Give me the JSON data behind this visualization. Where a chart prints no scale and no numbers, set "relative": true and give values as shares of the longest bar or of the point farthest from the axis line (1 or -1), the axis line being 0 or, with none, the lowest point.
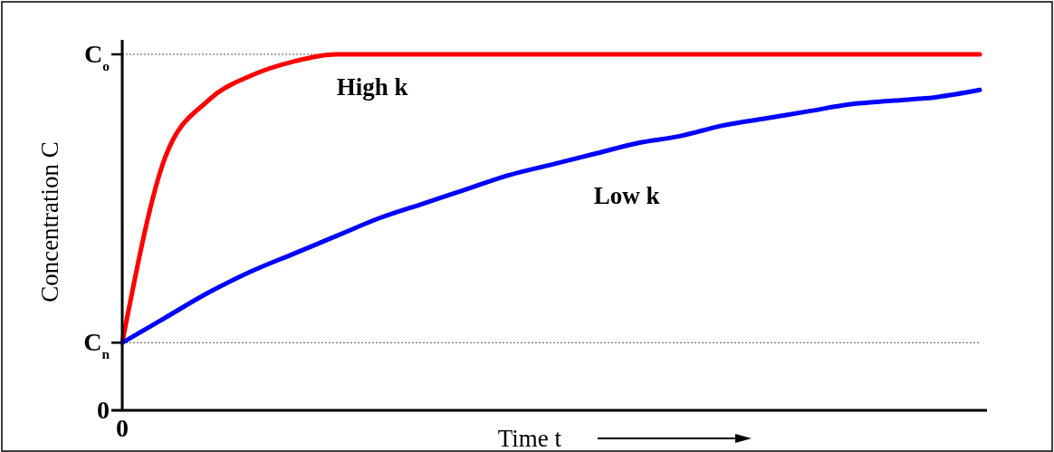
{
  "chart_data": {
    "type": "line",
    "xlabel": "Time t",
    "ylabel": "Concentration C",
    "relative": true,
    "categories": [
      null,
      null,
      null,
      null,
      null,
      null,
      null,
      null,
      null,
      null,
      null,
      null,
      null,
      null,
      null,
      null,
      null,
      null,
      null,
      null,
      null
    ],
    "annotations": [
      "0",
      "0"
    ],
    "ref_lines": [
      {
        "axis": "y",
        "value": 0.19,
        "label": "C$_{n}$",
        "line_style": "dotted",
        "color": "#555555"
      },
      {
        "axis": "y",
        "value": 1,
        "label": "C$_{o}$",
        "line_style": "dotted",
        "color": "#555555"
      }
    ],
    "series": [
      {
        "name": "High k",
        "color": "#ff0000",
        "values": [
          0.19,
          0.71,
          0.87,
          0.94,
          0.98,
          1,
          1,
          1,
          1,
          1,
          1,
          1,
          1,
          1,
          1,
          1,
          1,
          1,
          1,
          1,
          1
        ]
      },
      {
        "name": "Low k",
        "color": "#0000ff",
        "values": [
          0.19,
          0.26,
          0.33,
          0.39,
          0.44,
          0.49,
          0.54,
          0.58,
          0.62,
          0.66,
          0.69,
          0.72,
          0.75,
          0.77,
          0.8,
          0.82,
          0.84,
          0.86,
          0.87,
          0.88,
          0.9
        ]
      }
    ],
    "line_style": "solid"
  }
}
